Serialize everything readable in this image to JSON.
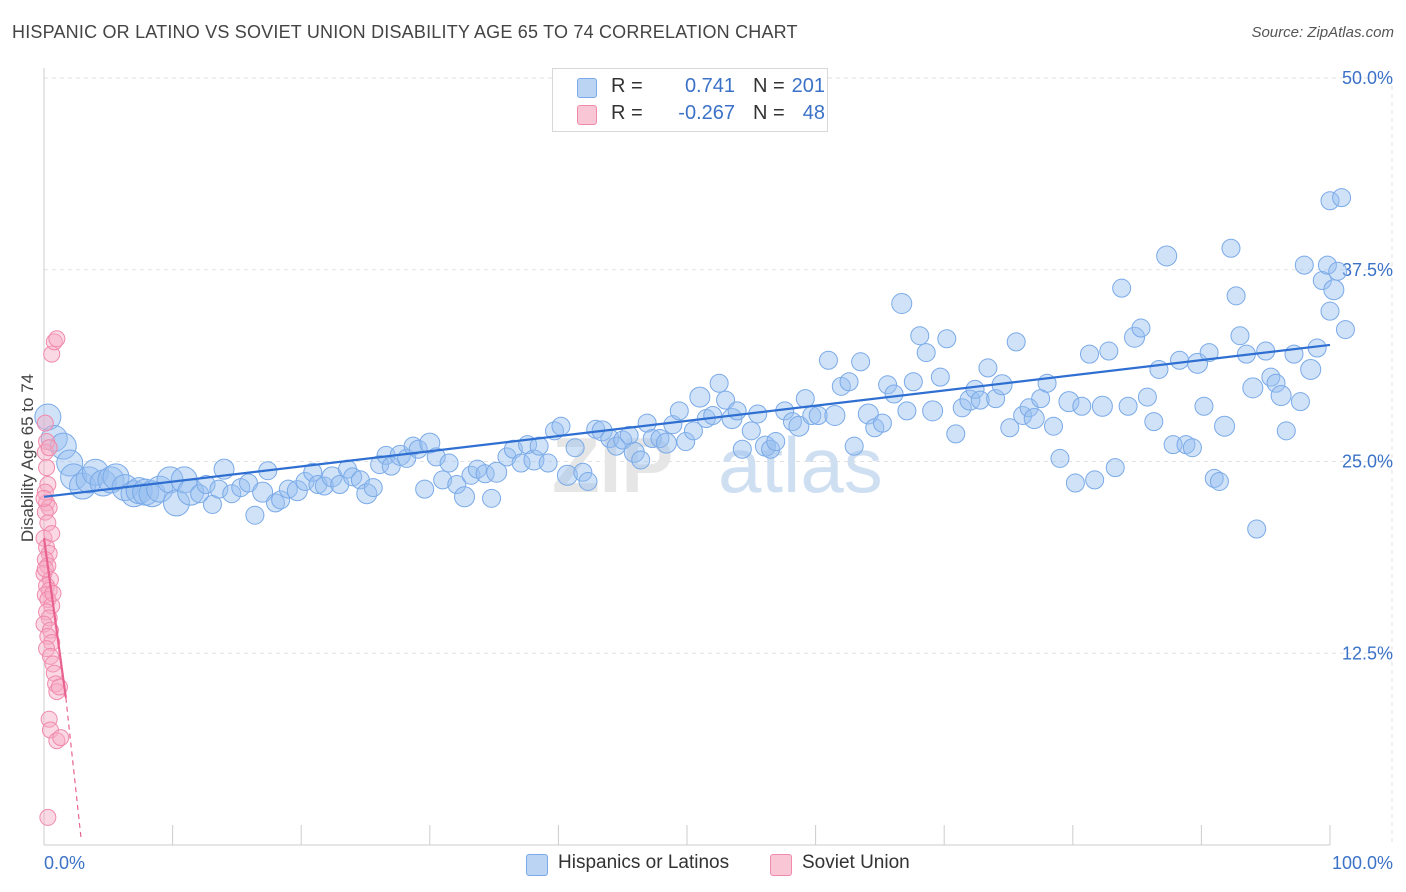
{
  "title": "HISPANIC OR LATINO VS SOVIET UNION DISABILITY AGE 65 TO 74 CORRELATION CHART",
  "source": "Source: ZipAtlas.com",
  "watermark": "ZIPatlas",
  "legend": {
    "rows": [
      {
        "r_label": "R =",
        "r_value": "0.741",
        "n_label": "N =",
        "n_value": "201",
        "color": "#a9c8f0"
      },
      {
        "r_label": "R =",
        "r_value": "-0.267",
        "n_label": "N =",
        "n_value": "48",
        "color": "#f6b4c8"
      }
    ]
  },
  "bottom_legend": [
    {
      "label": "Hispanics or Latinos",
      "color": "#a9c8f0"
    },
    {
      "label": "Soviet Union",
      "color": "#f6b4c8"
    }
  ],
  "chart_data": {
    "type": "scatter",
    "ylabel": "Disability Age 65 to 74",
    "xlim": [
      0,
      100
    ],
    "ylim": [
      0,
      50
    ],
    "x_tick_labels": [
      {
        "value": 0,
        "label": "0.0%"
      },
      {
        "value": 100,
        "label": "100.0%"
      }
    ],
    "y_tick_labels": [
      {
        "value": 12.5,
        "label": "12.5%"
      },
      {
        "value": 25.0,
        "label": "25.0%"
      },
      {
        "value": 37.5,
        "label": "37.5%"
      },
      {
        "value": 50.0,
        "label": "50.0%"
      }
    ],
    "grid": true,
    "series": [
      {
        "name": "Hispanics or Latinos",
        "color": "#7aaae8",
        "trend": {
          "x": [
            0,
            100
          ],
          "y": [
            22.7,
            32.6
          ]
        },
        "points": [
          [
            0.3,
            27.9
          ],
          [
            0.8,
            26.5
          ],
          [
            1.5,
            26.0
          ],
          [
            2.0,
            24.9
          ],
          [
            2.3,
            24.0
          ],
          [
            3.0,
            23.4
          ],
          [
            3.5,
            23.8
          ],
          [
            4.0,
            24.3
          ],
          [
            4.6,
            23.6
          ],
          [
            5.2,
            23.8
          ],
          [
            5.6,
            24.0
          ],
          [
            6.3,
            23.3
          ],
          [
            7.0,
            22.9
          ],
          [
            7.4,
            23.1
          ],
          [
            7.9,
            23.0
          ],
          [
            8.4,
            22.9
          ],
          [
            9.0,
            23.2
          ],
          [
            9.8,
            23.8
          ],
          [
            10.3,
            22.3
          ],
          [
            10.9,
            23.8
          ],
          [
            11.4,
            23.0
          ],
          [
            12.1,
            22.9
          ],
          [
            12.6,
            23.5
          ],
          [
            13.1,
            22.2
          ],
          [
            13.6,
            23.2
          ],
          [
            14.0,
            24.5
          ],
          [
            14.6,
            22.9
          ],
          [
            15.3,
            23.3
          ],
          [
            15.9,
            23.6
          ],
          [
            16.4,
            21.5
          ],
          [
            17.0,
            23.0
          ],
          [
            17.4,
            24.4
          ],
          [
            18.0,
            22.3
          ],
          [
            18.4,
            22.5
          ],
          [
            19.0,
            23.2
          ],
          [
            19.7,
            23.1
          ],
          [
            20.3,
            23.7
          ],
          [
            20.9,
            24.3
          ],
          [
            21.3,
            23.5
          ],
          [
            21.8,
            23.4
          ],
          [
            22.4,
            24.0
          ],
          [
            23.0,
            23.5
          ],
          [
            23.6,
            24.5
          ],
          [
            24.0,
            24.0
          ],
          [
            24.6,
            23.8
          ],
          [
            25.1,
            22.9
          ],
          [
            25.6,
            23.3
          ],
          [
            26.1,
            24.8
          ],
          [
            26.6,
            25.4
          ],
          [
            27.0,
            24.7
          ],
          [
            27.7,
            25.4
          ],
          [
            28.2,
            25.2
          ],
          [
            28.7,
            26.0
          ],
          [
            29.1,
            25.8
          ],
          [
            29.6,
            23.2
          ],
          [
            30.0,
            26.2
          ],
          [
            30.5,
            25.3
          ],
          [
            31.0,
            23.8
          ],
          [
            31.5,
            24.9
          ],
          [
            32.1,
            23.5
          ],
          [
            32.7,
            22.7
          ],
          [
            33.2,
            24.1
          ],
          [
            33.7,
            24.5
          ],
          [
            34.3,
            24.2
          ],
          [
            34.8,
            22.6
          ],
          [
            35.2,
            24.3
          ],
          [
            36.0,
            25.3
          ],
          [
            36.5,
            25.8
          ],
          [
            37.1,
            24.9
          ],
          [
            37.6,
            26.1
          ],
          [
            38.1,
            25.1
          ],
          [
            38.5,
            26.0
          ],
          [
            39.2,
            24.9
          ],
          [
            39.7,
            27.0
          ],
          [
            40.2,
            27.3
          ],
          [
            40.7,
            24.1
          ],
          [
            41.3,
            25.9
          ],
          [
            41.9,
            24.3
          ],
          [
            42.3,
            23.7
          ],
          [
            42.9,
            27.1
          ],
          [
            43.4,
            27.0
          ],
          [
            44.0,
            26.5
          ],
          [
            44.5,
            26.0
          ],
          [
            45.0,
            26.4
          ],
          [
            45.5,
            26.7
          ],
          [
            45.9,
            25.6
          ],
          [
            46.4,
            25.1
          ],
          [
            46.9,
            27.5
          ],
          [
            47.3,
            26.5
          ],
          [
            47.9,
            26.5
          ],
          [
            48.4,
            26.2
          ],
          [
            48.9,
            27.4
          ],
          [
            49.4,
            28.3
          ],
          [
            49.9,
            26.3
          ],
          [
            50.5,
            27.0
          ],
          [
            51.0,
            29.2
          ],
          [
            51.5,
            27.8
          ],
          [
            52.0,
            28.0
          ],
          [
            52.5,
            30.1
          ],
          [
            53.0,
            29.0
          ],
          [
            53.5,
            27.8
          ],
          [
            53.9,
            28.3
          ],
          [
            54.3,
            25.8
          ],
          [
            55.0,
            27.0
          ],
          [
            55.5,
            28.1
          ],
          [
            56.1,
            26.0
          ],
          [
            56.5,
            25.8
          ],
          [
            56.9,
            26.3
          ],
          [
            57.6,
            28.3
          ],
          [
            58.2,
            27.6
          ],
          [
            58.7,
            27.3
          ],
          [
            59.2,
            29.1
          ],
          [
            59.7,
            28.0
          ],
          [
            60.2,
            28.0
          ],
          [
            61.0,
            31.6
          ],
          [
            61.5,
            28.0
          ],
          [
            62.0,
            29.9
          ],
          [
            62.6,
            30.2
          ],
          [
            63.0,
            26.0
          ],
          [
            63.5,
            31.5
          ],
          [
            64.1,
            28.1
          ],
          [
            64.6,
            27.2
          ],
          [
            65.2,
            27.5
          ],
          [
            65.6,
            30.0
          ],
          [
            66.1,
            29.4
          ],
          [
            66.7,
            35.3
          ],
          [
            67.1,
            28.3
          ],
          [
            67.6,
            30.2
          ],
          [
            68.1,
            33.2
          ],
          [
            68.6,
            32.1
          ],
          [
            69.1,
            28.3
          ],
          [
            69.7,
            30.5
          ],
          [
            70.2,
            33.0
          ],
          [
            70.9,
            26.8
          ],
          [
            71.4,
            28.5
          ],
          [
            72.0,
            29.0
          ],
          [
            72.4,
            29.7
          ],
          [
            72.8,
            29.0
          ],
          [
            73.4,
            31.1
          ],
          [
            74.0,
            29.1
          ],
          [
            74.5,
            30.0
          ],
          [
            75.1,
            27.2
          ],
          [
            75.6,
            32.8
          ],
          [
            76.1,
            28.0
          ],
          [
            76.6,
            28.5
          ],
          [
            77.0,
            27.8
          ],
          [
            77.5,
            29.1
          ],
          [
            78.0,
            30.1
          ],
          [
            78.5,
            27.3
          ],
          [
            79.0,
            25.2
          ],
          [
            79.7,
            28.9
          ],
          [
            80.2,
            23.6
          ],
          [
            80.7,
            28.6
          ],
          [
            81.3,
            32.0
          ],
          [
            81.7,
            23.8
          ],
          [
            82.3,
            28.6
          ],
          [
            82.8,
            32.2
          ],
          [
            83.3,
            24.6
          ],
          [
            83.8,
            36.3
          ],
          [
            84.3,
            28.6
          ],
          [
            84.8,
            33.1
          ],
          [
            85.3,
            33.7
          ],
          [
            85.8,
            29.2
          ],
          [
            86.3,
            27.6
          ],
          [
            86.7,
            31.0
          ],
          [
            87.3,
            38.4
          ],
          [
            87.8,
            26.1
          ],
          [
            88.3,
            31.6
          ],
          [
            88.8,
            26.1
          ],
          [
            89.3,
            25.9
          ],
          [
            89.7,
            31.4
          ],
          [
            90.2,
            28.6
          ],
          [
            90.6,
            32.1
          ],
          [
            91.0,
            23.9
          ],
          [
            91.4,
            23.7
          ],
          [
            91.8,
            27.3
          ],
          [
            92.3,
            38.9
          ],
          [
            92.7,
            35.8
          ],
          [
            93.0,
            33.2
          ],
          [
            93.5,
            32.0
          ],
          [
            94.0,
            29.8
          ],
          [
            94.3,
            20.6
          ],
          [
            95.0,
            32.2
          ],
          [
            95.4,
            30.5
          ],
          [
            95.8,
            30.1
          ],
          [
            96.2,
            29.3
          ],
          [
            96.6,
            27.0
          ],
          [
            97.2,
            32.0
          ],
          [
            97.7,
            28.9
          ],
          [
            98.0,
            37.8
          ],
          [
            98.5,
            31.0
          ],
          [
            99.0,
            32.4
          ],
          [
            99.4,
            36.8
          ],
          [
            99.8,
            37.8
          ],
          [
            100.0,
            34.8
          ],
          [
            100.3,
            36.2
          ],
          [
            100.6,
            37.4
          ],
          [
            100.0,
            42.0
          ],
          [
            100.9,
            42.2
          ],
          [
            101.2,
            33.6
          ]
        ]
      },
      {
        "name": "Soviet Union",
        "color": "#f08aac",
        "trend": {
          "x": [
            0,
            1.7
          ],
          "y": [
            20.0,
            9.6
          ],
          "dash_extend_to": {
            "x": 2.9,
            "y": 0.3
          }
        },
        "points": [
          [
            0.1,
            27.5
          ],
          [
            0.2,
            26.3
          ],
          [
            0.1,
            25.6
          ],
          [
            0.3,
            23.5
          ],
          [
            0.1,
            23.0
          ],
          [
            0.2,
            22.3
          ],
          [
            0.4,
            22.0
          ],
          [
            0.1,
            21.7
          ],
          [
            0.3,
            21.0
          ],
          [
            0.0,
            20.0
          ],
          [
            0.2,
            19.4
          ],
          [
            0.4,
            19.0
          ],
          [
            0.1,
            18.6
          ],
          [
            0.3,
            18.2
          ],
          [
            0.0,
            17.7
          ],
          [
            0.5,
            17.3
          ],
          [
            0.2,
            16.9
          ],
          [
            0.4,
            16.6
          ],
          [
            0.1,
            16.3
          ],
          [
            0.3,
            16.0
          ],
          [
            0.6,
            15.6
          ],
          [
            0.2,
            15.2
          ],
          [
            0.4,
            14.8
          ],
          [
            0.0,
            14.4
          ],
          [
            0.5,
            14.0
          ],
          [
            0.3,
            13.6
          ],
          [
            0.6,
            13.2
          ],
          [
            0.2,
            12.8
          ],
          [
            0.5,
            12.3
          ],
          [
            0.7,
            11.8
          ],
          [
            0.8,
            11.2
          ],
          [
            0.9,
            10.5
          ],
          [
            1.0,
            10.0
          ],
          [
            1.2,
            10.3
          ],
          [
            0.4,
            8.2
          ],
          [
            0.5,
            7.5
          ],
          [
            1.0,
            6.8
          ],
          [
            1.3,
            7.0
          ],
          [
            0.3,
            1.8
          ],
          [
            0.6,
            32.0
          ],
          [
            0.8,
            32.8
          ],
          [
            1.0,
            33.0
          ],
          [
            0.2,
            24.6
          ],
          [
            0.4,
            25.9
          ],
          [
            0.0,
            22.6
          ],
          [
            0.6,
            20.3
          ],
          [
            0.1,
            18.0
          ],
          [
            0.7,
            16.4
          ]
        ]
      }
    ]
  }
}
